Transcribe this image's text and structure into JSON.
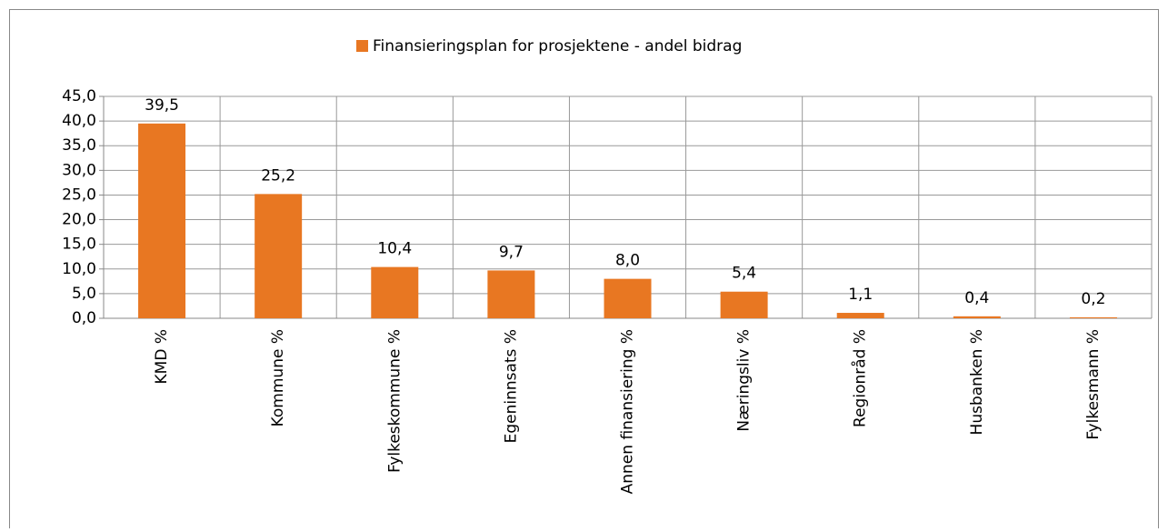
{
  "chart_data": {
    "type": "bar",
    "categories": [
      "KMD %",
      "Kommune %",
      "Fylkeskommune %",
      "Egeninnsats %",
      "Annen finansiering %",
      "Næringsliv %",
      "Regionråd %",
      "Husbanken %",
      "Fylkesmann %"
    ],
    "series": [
      {
        "name": "Finansieringsplan for prosjektene - andel bidrag",
        "color": "#e87722",
        "values": [
          39.5,
          25.2,
          10.4,
          9.7,
          8.0,
          5.4,
          1.1,
          0.4,
          0.2
        ],
        "value_labels": [
          "39,5",
          "25,2",
          "10,4",
          "9,7",
          "8,0",
          "5,4",
          "1,1",
          "0,4",
          "0,2"
        ]
      }
    ],
    "ylim": [
      0,
      45
    ],
    "yticks": [
      {
        "value": 0,
        "label": "0,0"
      },
      {
        "value": 5,
        "label": "5,0"
      },
      {
        "value": 10,
        "label": "10,0"
      },
      {
        "value": 15,
        "label": "15,0"
      },
      {
        "value": 20,
        "label": "20,0"
      },
      {
        "value": 25,
        "label": "25,0"
      },
      {
        "value": 30,
        "label": "30,0"
      },
      {
        "value": 35,
        "label": "35,0"
      },
      {
        "value": 40,
        "label": "40,0"
      },
      {
        "value": 45,
        "label": "45,0"
      }
    ],
    "grid": true,
    "legend": "top"
  }
}
